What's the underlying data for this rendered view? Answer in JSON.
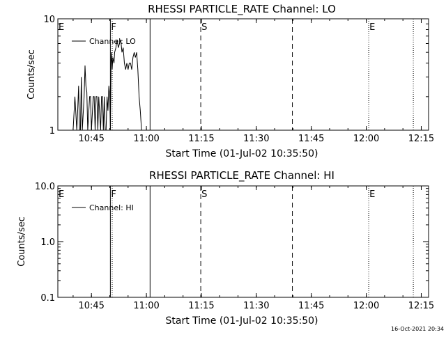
{
  "footer": {
    "timestamp": "16-Oct-2021 20:34"
  },
  "chart_data": [
    {
      "type": "line",
      "title": "RHESSI PARTICLE_RATE Channel: LO",
      "xlabel": "Start Time (01-Jul-02 10:35:50)",
      "ylabel": "Counts/sec",
      "y_scale": "log",
      "ylim": [
        1,
        10
      ],
      "xlim": [
        "10:35:50",
        "12:17:00"
      ],
      "x_ticks": [
        "10:45",
        "11:00",
        "11:15",
        "11:30",
        "11:45",
        "12:00",
        "12:15"
      ],
      "y_ticks": [
        "1",
        "10"
      ],
      "legend": {
        "position": "top-left",
        "label": "Channel: LO"
      },
      "event_markers": [
        {
          "label": "E",
          "time": "10:35:50",
          "style": "none"
        },
        {
          "label": "F",
          "time": "10:50:10",
          "style": "solid"
        },
        {
          "label": "",
          "time": "10:50:40",
          "style": "dotted"
        },
        {
          "label": "",
          "time": "11:01:00",
          "style": "solid"
        },
        {
          "label": "S",
          "time": "11:14:50",
          "style": "dashed"
        },
        {
          "label": "",
          "time": "11:39:50",
          "style": "dashed"
        },
        {
          "label": "E",
          "time": "12:00:40",
          "style": "dotted"
        },
        {
          "label": "",
          "time": "12:12:50",
          "style": "dotted"
        }
      ],
      "series": [
        {
          "x": [
            "10:39:30",
            "10:40:00",
            "10:40:30",
            "10:41:00",
            "10:41:15",
            "10:41:30",
            "10:41:45",
            "10:42:00",
            "10:42:15",
            "10:42:30",
            "10:43:00",
            "10:43:15",
            "10:43:30",
            "10:43:45",
            "10:44:00",
            "10:44:30",
            "10:44:45",
            "10:45:00",
            "10:45:30",
            "10:45:45",
            "10:46:00",
            "10:46:15",
            "10:46:30",
            "10:46:45",
            "10:47:00",
            "10:47:30",
            "10:47:45",
            "10:48:00",
            "10:48:15",
            "10:48:30",
            "10:48:45",
            "10:49:00",
            "10:49:15",
            "10:49:30",
            "10:49:45",
            "10:50:00",
            "10:50:10",
            "10:50:20",
            "10:50:30",
            "10:50:40",
            "10:50:50",
            "10:51:10",
            "10:51:20",
            "10:51:40",
            "10:52:00",
            "10:52:20",
            "10:52:40",
            "10:53:00",
            "10:53:20",
            "10:53:40",
            "10:54:00",
            "10:54:20",
            "10:54:40",
            "10:55:00",
            "10:55:20",
            "10:55:40",
            "10:56:00",
            "10:56:20",
            "10:56:40",
            "10:57:00",
            "10:57:20",
            "10:57:40",
            "10:58:00",
            "10:58:20",
            "10:58:40",
            "10:59:00"
          ],
          "y": [
            1,
            1,
            2,
            1,
            1.5,
            2.5,
            1,
            1,
            3,
            1,
            2,
            3.8,
            2.5,
            2.2,
            1,
            2,
            2,
            1,
            2,
            2,
            1,
            2,
            2,
            1,
            2,
            1,
            2,
            2,
            1,
            2,
            1,
            1,
            2,
            1.5,
            2.5,
            2,
            1,
            4,
            5,
            3.5,
            4.5,
            4,
            5,
            5.5,
            6.5,
            5.5,
            6,
            6.5,
            5,
            5.5,
            4,
            3.5,
            4,
            3.5,
            4,
            4,
            3.5,
            4.5,
            5,
            4.5,
            5,
            3.5,
            2,
            1.5,
            1,
            1
          ]
        }
      ]
    },
    {
      "type": "line",
      "title": "RHESSI PARTICLE_RATE Channel: HI",
      "xlabel": "Start Time (01-Jul-02 10:35:50)",
      "ylabel": "Counts/sec",
      "y_scale": "log",
      "ylim": [
        0.1,
        10
      ],
      "xlim": [
        "10:35:50",
        "12:17:00"
      ],
      "x_ticks": [
        "10:45",
        "11:00",
        "11:15",
        "11:30",
        "11:45",
        "12:00",
        "12:15"
      ],
      "y_ticks": [
        "0.1",
        "1.0",
        "10.0"
      ],
      "legend": {
        "position": "top-left",
        "label": "Channel: HI"
      },
      "event_markers": [
        {
          "label": "E",
          "time": "10:35:50",
          "style": "none"
        },
        {
          "label": "F",
          "time": "10:50:10",
          "style": "solid"
        },
        {
          "label": "",
          "time": "10:50:40",
          "style": "dotted"
        },
        {
          "label": "",
          "time": "11:01:00",
          "style": "solid"
        },
        {
          "label": "S",
          "time": "11:14:50",
          "style": "dashed"
        },
        {
          "label": "",
          "time": "11:39:50",
          "style": "dashed"
        },
        {
          "label": "E",
          "time": "12:00:40",
          "style": "dotted"
        },
        {
          "label": "",
          "time": "12:12:50",
          "style": "dotted"
        }
      ],
      "series": [
        {
          "x": [],
          "y": []
        }
      ]
    }
  ]
}
